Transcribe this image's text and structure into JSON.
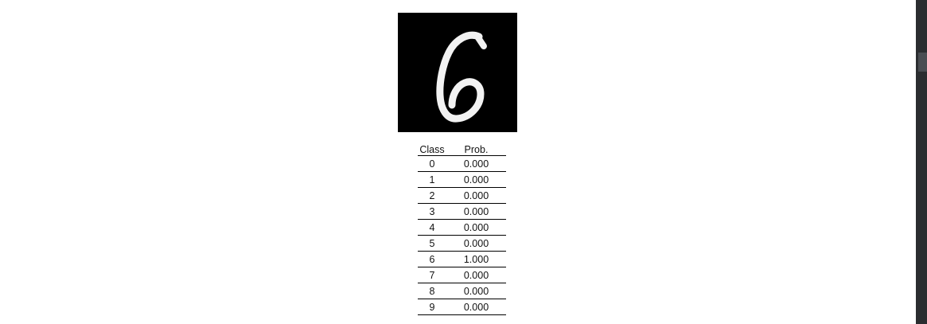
{
  "image": {
    "icon": "handwritten-digit-six",
    "background": "#000000",
    "stroke": "#f2f2f2"
  },
  "table": {
    "headers": {
      "class": "Class",
      "prob": "Prob."
    },
    "rows": [
      {
        "class": "0",
        "prob": "0.000"
      },
      {
        "class": "1",
        "prob": "0.000"
      },
      {
        "class": "2",
        "prob": "0.000"
      },
      {
        "class": "3",
        "prob": "0.000"
      },
      {
        "class": "4",
        "prob": "0.000"
      },
      {
        "class": "5",
        "prob": "0.000"
      },
      {
        "class": "6",
        "prob": "1.000"
      },
      {
        "class": "7",
        "prob": "0.000"
      },
      {
        "class": "8",
        "prob": "0.000"
      },
      {
        "class": "9",
        "prob": "0.000"
      }
    ]
  },
  "scrollbar": {
    "track": "#2b2d30",
    "thumb": "#4a4d52"
  }
}
